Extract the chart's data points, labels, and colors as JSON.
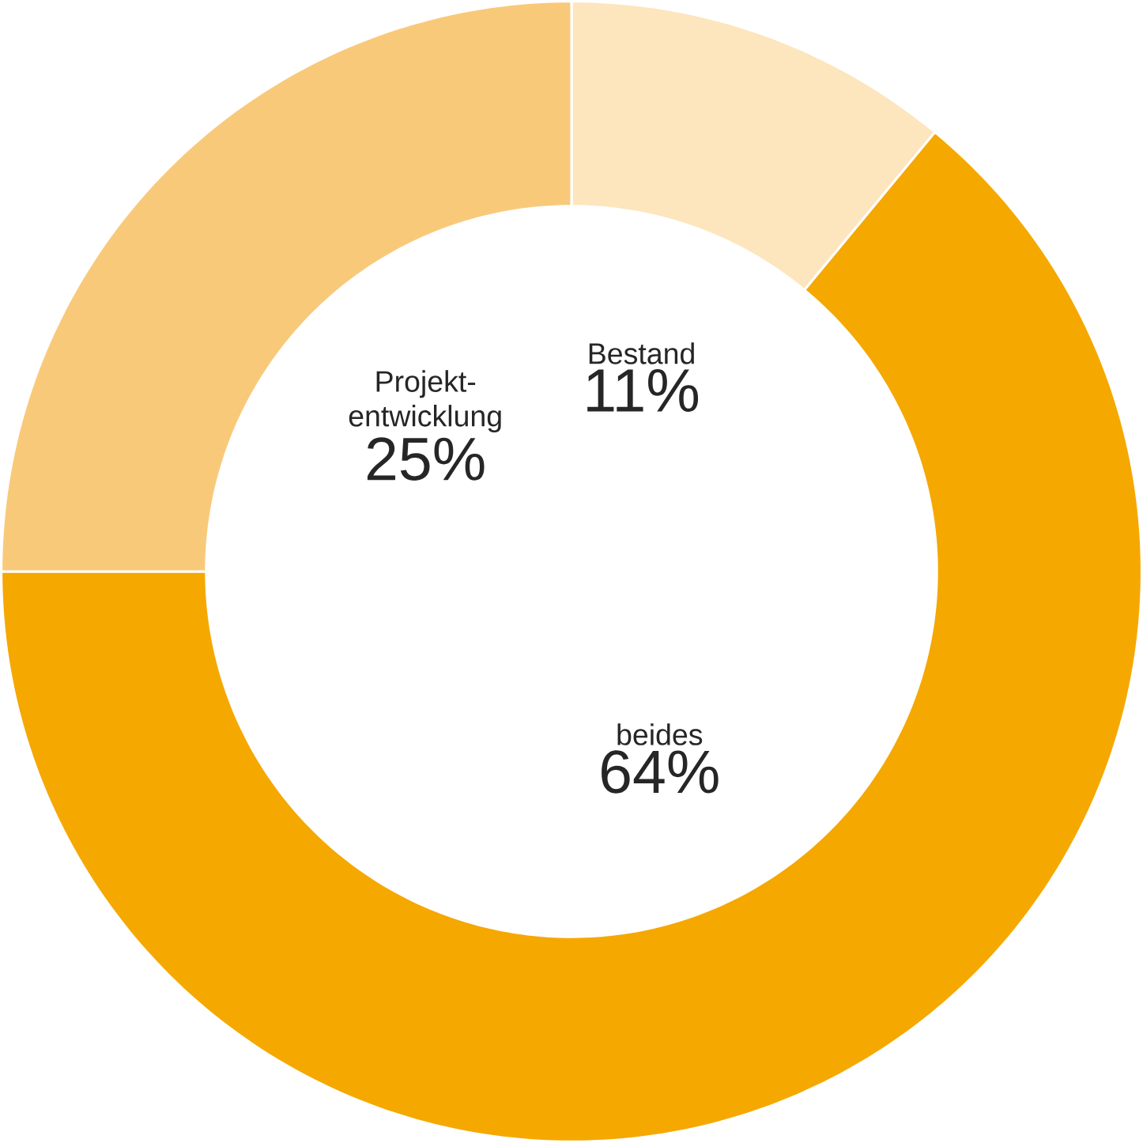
{
  "chart_data": {
    "type": "donut",
    "categories": [
      "Bestand",
      "beides",
      "Projekt-entwicklung"
    ],
    "values": [
      11,
      64,
      25
    ],
    "colors": [
      "#fde5bd",
      "#f5a800",
      "#f9c97a"
    ],
    "value_labels": [
      "11%",
      "64%",
      "25%"
    ]
  }
}
